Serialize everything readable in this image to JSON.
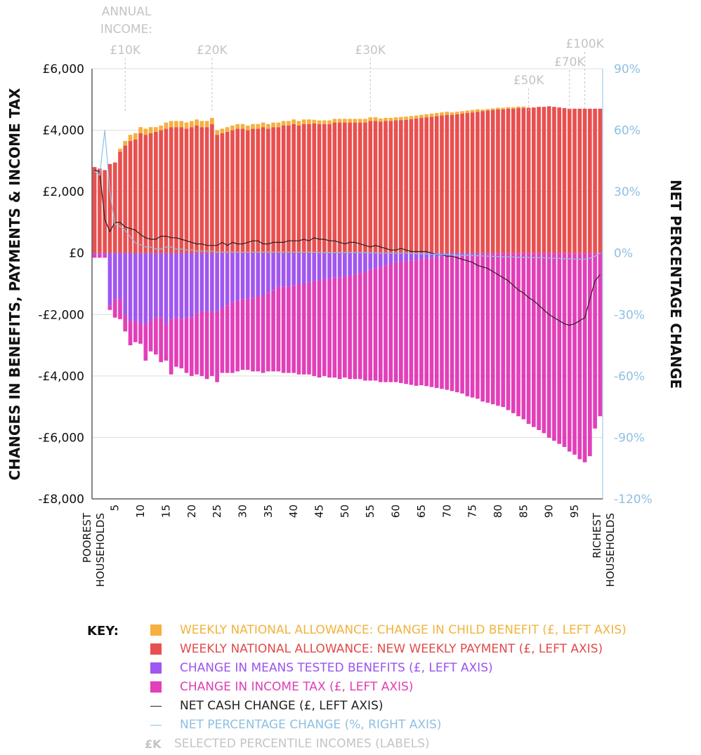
{
  "chart_data": {
    "type": "bar",
    "x_label_left": [
      "POOREST",
      "HOUSEHOLDS"
    ],
    "x_label_right": [
      "RICHEST",
      "HOUSEHOLDS"
    ],
    "ylabel": "CHANGES IN BENEFITS, PAYMENTS & INCOME TAX",
    "y2label": "NET PERCENTAGE CHANGE",
    "ylim": [
      -8000,
      6000
    ],
    "y2lim": [
      -120,
      90
    ],
    "y_ticks": [
      6000,
      4000,
      2000,
      0,
      -2000,
      -4000,
      -6000,
      -8000
    ],
    "y_tick_labels": [
      "£6,000",
      "£4,000",
      "£2,000",
      "£0",
      "-£2,000",
      "-£4,000",
      "-£6,000",
      "-£8,000"
    ],
    "y2_ticks": [
      90,
      60,
      30,
      0,
      -30,
      -60,
      -90,
      -120
    ],
    "y2_tick_labels": [
      "90%",
      "60%",
      "30%",
      "0%",
      "-30%",
      "-60%",
      "-90%",
      "-120%"
    ],
    "x_ticks": [
      5,
      10,
      15,
      20,
      25,
      30,
      35,
      40,
      45,
      50,
      55,
      60,
      65,
      70,
      75,
      80,
      85,
      90,
      95
    ],
    "annual_income_label": [
      "ANNUAL",
      "INCOME:"
    ],
    "income_markers": [
      {
        "percentile": 7,
        "label": "£10K"
      },
      {
        "percentile": 24,
        "label": "£20K"
      },
      {
        "percentile": 55,
        "label": "£30K"
      },
      {
        "percentile": 86,
        "label": "£50K"
      },
      {
        "percentile": 94,
        "label": "£70K"
      },
      {
        "percentile": 97,
        "label": "£100K"
      }
    ],
    "series": [
      {
        "name": "WEEKLY NATIONAL ALLOWANCE: CHANGE IN CHILD BENEFIT (£, LEFT AXIS)",
        "color": "#f5b041",
        "axis": "left",
        "values": [
          0,
          0,
          0,
          0,
          0,
          100,
          150,
          200,
          200,
          200,
          200,
          200,
          150,
          150,
          200,
          200,
          200,
          200,
          200,
          200,
          200,
          200,
          200,
          200,
          150,
          150,
          150,
          150,
          150,
          150,
          150,
          150,
          150,
          150,
          150,
          150,
          150,
          150,
          150,
          150,
          150,
          150,
          150,
          120,
          120,
          120,
          120,
          120,
          120,
          120,
          120,
          120,
          120,
          120,
          120,
          120,
          100,
          100,
          100,
          100,
          100,
          100,
          100,
          100,
          100,
          100,
          100,
          100,
          100,
          100,
          80,
          80,
          80,
          80,
          80,
          80,
          50,
          50,
          50,
          50,
          50,
          50,
          50,
          50,
          50,
          0,
          0,
          0,
          0,
          0,
          0,
          0,
          0,
          0,
          0,
          0,
          0,
          0,
          0,
          0
        ]
      },
      {
        "name": "WEEKLY NATIONAL ALLOWANCE:  NEW WEEKLY PAYMENT (£, LEFT AXIS)",
        "color": "#e8504f",
        "axis": "left",
        "values": [
          2800,
          2750,
          2700,
          2900,
          2950,
          3300,
          3500,
          3650,
          3700,
          3900,
          3850,
          3900,
          3950,
          4000,
          4050,
          4100,
          4100,
          4100,
          4050,
          4100,
          4150,
          4100,
          4100,
          4200,
          3850,
          3900,
          3950,
          4000,
          4050,
          4050,
          4000,
          4050,
          4050,
          4100,
          4050,
          4100,
          4100,
          4150,
          4150,
          4200,
          4150,
          4200,
          4200,
          4220,
          4200,
          4200,
          4200,
          4250,
          4250,
          4250,
          4250,
          4250,
          4250,
          4250,
          4300,
          4300,
          4280,
          4300,
          4300,
          4320,
          4330,
          4340,
          4360,
          4380,
          4400,
          4420,
          4440,
          4460,
          4480,
          4500,
          4500,
          4520,
          4540,
          4560,
          4580,
          4600,
          4620,
          4640,
          4660,
          4680,
          4680,
          4700,
          4700,
          4720,
          4720,
          4730,
          4740,
          4760,
          4760,
          4780,
          4760,
          4740,
          4720,
          4700,
          4700,
          4700,
          4700,
          4700,
          4700,
          4700
        ]
      },
      {
        "name": "CHANGE IN MEANS TESTED BENEFITS (£, LEFT AXIS)",
        "color": "#a056f0",
        "axis": "left",
        "values": [
          -50,
          -50,
          -50,
          -1700,
          -1500,
          -1500,
          -2000,
          -2200,
          -2200,
          -2300,
          -2300,
          -2200,
          -2100,
          -2100,
          -2300,
          -2150,
          -2100,
          -2150,
          -2100,
          -2100,
          -1950,
          -1900,
          -1900,
          -1900,
          -1900,
          -1800,
          -1700,
          -1600,
          -1550,
          -1500,
          -1500,
          -1450,
          -1400,
          -1400,
          -1300,
          -1200,
          -1100,
          -1100,
          -1100,
          -1050,
          -1000,
          -1000,
          -950,
          -900,
          -900,
          -850,
          -850,
          -800,
          -800,
          -750,
          -750,
          -700,
          -650,
          -600,
          -550,
          -500,
          -450,
          -400,
          -350,
          -300,
          -280,
          -260,
          -240,
          -220,
          -200,
          -180,
          -160,
          -140,
          -120,
          -100,
          -90,
          -80,
          -70,
          -60,
          -50,
          -40,
          -30,
          -20,
          -20,
          -20,
          -10,
          -10,
          -10,
          -10,
          -10,
          -10,
          -10,
          -10,
          -10,
          -10,
          -10,
          -10,
          -10,
          -10,
          -10,
          -10,
          -10,
          -10,
          -10,
          -10
        ]
      },
      {
        "name": "CHANGE IN INCOME TAX (£, LEFT AXIS)",
        "color": "#e23fb9",
        "axis": "left",
        "values": [
          -100,
          -100,
          -100,
          -150,
          -600,
          -650,
          -550,
          -800,
          -700,
          -650,
          -1200,
          -1000,
          -1200,
          -1450,
          -1200,
          -1800,
          -1600,
          -1600,
          -1800,
          -1900,
          -2000,
          -2100,
          -2200,
          -2100,
          -2300,
          -2100,
          -2200,
          -2300,
          -2300,
          -2300,
          -2300,
          -2400,
          -2450,
          -2500,
          -2550,
          -2650,
          -2750,
          -2800,
          -2800,
          -2850,
          -2950,
          -2950,
          -3000,
          -3100,
          -3150,
          -3150,
          -3200,
          -3250,
          -3300,
          -3300,
          -3350,
          -3400,
          -3450,
          -3550,
          -3600,
          -3650,
          -3750,
          -3800,
          -3850,
          -3900,
          -3950,
          -4000,
          -4050,
          -4100,
          -4100,
          -4150,
          -4200,
          -4250,
          -4300,
          -4350,
          -4400,
          -4450,
          -4500,
          -4600,
          -4650,
          -4700,
          -4800,
          -4850,
          -4900,
          -4950,
          -5000,
          -5100,
          -5200,
          -5300,
          -5400,
          -5550,
          -5650,
          -5750,
          -5850,
          -6000,
          -6100,
          -6200,
          -6300,
          -6450,
          -6550,
          -6700,
          -6800,
          -6600,
          -5700,
          -5300
        ]
      }
    ],
    "lines": [
      {
        "name": "NET CASH CHANGE (£, LEFT AXIS)",
        "color": "#222222",
        "axis": "left",
        "values": [
          2700,
          2650,
          1100,
          700,
          1000,
          1000,
          850,
          800,
          750,
          600,
          500,
          450,
          450,
          550,
          550,
          500,
          500,
          450,
          400,
          350,
          300,
          300,
          250,
          250,
          250,
          350,
          250,
          350,
          300,
          300,
          350,
          400,
          400,
          300,
          300,
          350,
          350,
          350,
          400,
          400,
          400,
          450,
          400,
          500,
          450,
          450,
          400,
          400,
          350,
          300,
          350,
          350,
          300,
          250,
          200,
          250,
          200,
          150,
          100,
          100,
          150,
          100,
          50,
          50,
          50,
          50,
          0,
          -50,
          -50,
          -100,
          -100,
          -150,
          -200,
          -250,
          -300,
          -400,
          -450,
          -500,
          -600,
          -700,
          -800,
          -900,
          -1050,
          -1200,
          -1300,
          -1450,
          -1550,
          -1700,
          -1850,
          -2000,
          -2100,
          -2200,
          -2300,
          -2350,
          -2300,
          -2200,
          -2100,
          -1500,
          -900,
          -700
        ]
      },
      {
        "name": "NET PERCENTAGE CHANGE (%, RIGHT AXIS)",
        "color": "#8ec0e2",
        "axis": "right",
        "values": [
          40,
          38,
          60,
          30,
          14,
          13,
          11,
          8,
          5,
          4,
          3,
          3,
          2,
          2,
          3,
          3,
          2,
          2,
          1.5,
          1.5,
          1,
          1,
          1,
          1,
          0.5,
          0.5,
          0.5,
          0.5,
          0.5,
          0.5,
          0.5,
          0.5,
          0.5,
          0.5,
          0.5,
          0.5,
          0.5,
          0.5,
          0.5,
          0.5,
          0.5,
          0.5,
          0.5,
          0.5,
          0.3,
          0.3,
          0.3,
          0.3,
          0.3,
          0.3,
          0.3,
          0.3,
          0.2,
          0.2,
          0.1,
          0.1,
          0,
          0,
          0,
          0,
          0,
          0,
          -0.2,
          -0.3,
          -0.4,
          -0.5,
          -0.5,
          -0.6,
          -0.7,
          -0.8,
          -0.9,
          -1,
          -1,
          -1.1,
          -1.2,
          -1.3,
          -1.4,
          -1.5,
          -1.6,
          -1.7,
          -1.8,
          -1.8,
          -1.9,
          -2,
          -2,
          -2.1,
          -2.2,
          -2.2,
          -2.3,
          -2.4,
          -2.5,
          -2.6,
          -2.7,
          -2.8,
          -2.9,
          -3,
          -3,
          -2.5,
          -1.5,
          0
        ]
      }
    ]
  },
  "legend": {
    "key_label": "KEY:",
    "items": [
      {
        "type": "square",
        "color": "#f5b041",
        "text_color": "#f2b33d",
        "label": "WEEKLY NATIONAL ALLOWANCE: CHANGE IN CHILD BENEFIT (£, LEFT AXIS)"
      },
      {
        "type": "square",
        "color": "#e8504f",
        "text_color": "#e24a4a",
        "label": "WEEKLY NATIONAL ALLOWANCE:  NEW WEEKLY PAYMENT (£, LEFT AXIS)"
      },
      {
        "type": "square",
        "color": "#a056f0",
        "text_color": "#9b52ee",
        "label": "CHANGE IN MEANS TESTED BENEFITS (£, LEFT AXIS)"
      },
      {
        "type": "square",
        "color": "#e23fb9",
        "text_color": "#dc3fb5",
        "label": "CHANGE IN INCOME TAX (£, LEFT AXIS)"
      },
      {
        "type": "line",
        "color": "#222222",
        "text_color": "#222222",
        "label": "NET CASH CHANGE (£, LEFT AXIS)"
      },
      {
        "type": "line",
        "color": "#8ec0e2",
        "text_color": "#8ec0e2",
        "label": "NET PERCENTAGE CHANGE (%, RIGHT AXIS)"
      },
      {
        "type": "text",
        "swatch_text": "£K",
        "color": "#c4c4c4",
        "text_color": "#c4c4c4",
        "label": "SELECTED PERCENTILE INCOMES (LABELS)"
      }
    ]
  }
}
